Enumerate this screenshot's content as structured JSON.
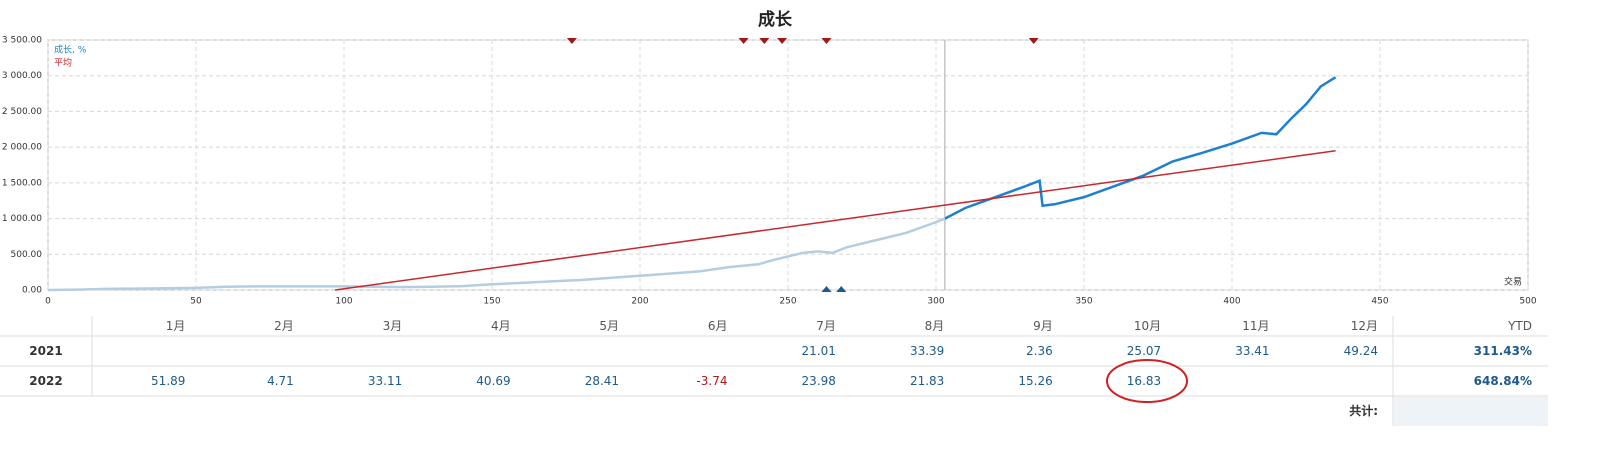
{
  "chart_data": {
    "type": "line",
    "title": "成长",
    "x_label": "交易",
    "xlim": [
      0,
      500
    ],
    "xticks": [
      0,
      50,
      100,
      150,
      200,
      250,
      300,
      350,
      400,
      450,
      500
    ],
    "ylim": [
      0,
      3500
    ],
    "yticks": [
      {
        "value": 0,
        "label": "0.00"
      },
      {
        "value": 500,
        "label": "500.00"
      },
      {
        "value": 1000,
        "label": "1 000.00"
      },
      {
        "value": 1500,
        "label": "1 500.00"
      },
      {
        "value": 2000,
        "label": "2 000.00"
      },
      {
        "value": 2500,
        "label": "2 500.00"
      },
      {
        "value": 3000,
        "label": "3 000.00"
      },
      {
        "value": 3500,
        "label": "3 500.00"
      }
    ],
    "grid": true,
    "split_x": 303,
    "history_color": "#b4cde0",
    "series": [
      {
        "name": "成长, %",
        "color": "#1f7fd0",
        "x": [
          0,
          10,
          20,
          30,
          40,
          50,
          60,
          70,
          80,
          100,
          110,
          120,
          130,
          140,
          150,
          160,
          170,
          180,
          190,
          200,
          210,
          220,
          230,
          240,
          245,
          250,
          255,
          260,
          265,
          270,
          280,
          290,
          300,
          303,
          310,
          320,
          330,
          335,
          336,
          340,
          350,
          360,
          370,
          380,
          390,
          400,
          410,
          415,
          420,
          425,
          430,
          435
        ],
        "values": [
          0,
          5,
          15,
          20,
          25,
          30,
          45,
          50,
          50,
          50,
          45,
          40,
          45,
          55,
          80,
          100,
          120,
          140,
          170,
          200,
          230,
          260,
          320,
          360,
          420,
          470,
          520,
          540,
          520,
          600,
          700,
          800,
          950,
          1000,
          1150,
          1300,
          1450,
          1530,
          1180,
          1200,
          1300,
          1450,
          1600,
          1800,
          1920,
          2050,
          2200,
          2180,
          2400,
          2600,
          2850,
          2980
        ]
      },
      {
        "name": "平均",
        "color": "#c8282d",
        "x": [
          97,
          435
        ],
        "values": [
          0,
          1950
        ]
      }
    ],
    "top_markers": {
      "color": "#a01818",
      "x": [
        177,
        235,
        242,
        248,
        263,
        333
      ]
    },
    "bottom_markers": {
      "color": "#1e5a8c",
      "x": [
        263,
        268
      ]
    }
  },
  "table": {
    "columns": [
      "1月",
      "2月",
      "3月",
      "4月",
      "5月",
      "6月",
      "7月",
      "8月",
      "9月",
      "10月",
      "11月",
      "12月",
      "YTD"
    ],
    "rows": [
      {
        "year": "2021",
        "values": [
          null,
          null,
          null,
          null,
          null,
          null,
          21.01,
          33.39,
          2.36,
          25.07,
          33.41,
          49.24
        ],
        "ytd": "311.43%"
      },
      {
        "year": "2022",
        "values": [
          51.89,
          4.71,
          33.11,
          40.69,
          28.41,
          -3.74,
          23.98,
          21.83,
          15.26,
          16.83,
          null,
          null
        ],
        "ytd": "648.84%"
      }
    ],
    "total_label": "共计:"
  }
}
